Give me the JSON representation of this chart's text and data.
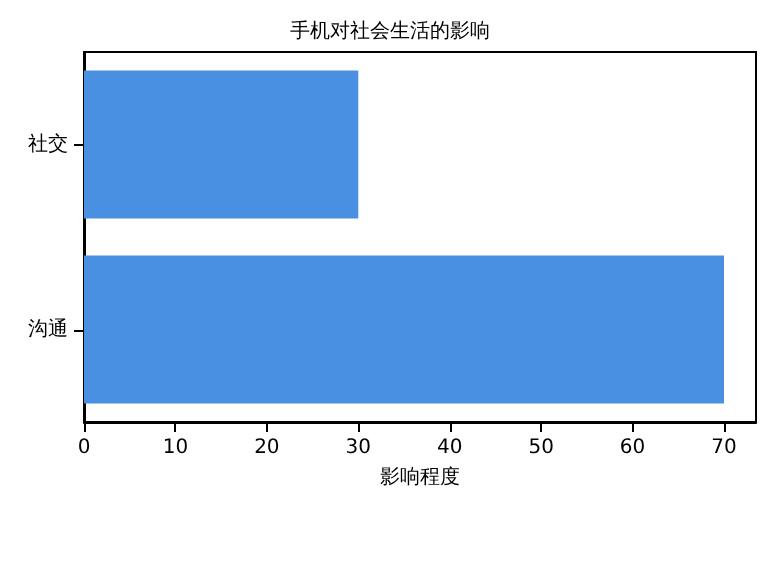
{
  "chart_data": {
    "type": "bar",
    "orientation": "horizontal",
    "title": "手机对社会生活的影响",
    "xlabel": "影响程度",
    "categories": [
      "社交",
      "沟通"
    ],
    "values": [
      30,
      70
    ],
    "color": "#4a90e2",
    "xlim": [
      0,
      73.5
    ],
    "xticks": [
      0,
      10,
      20,
      30,
      40,
      50,
      60,
      70
    ],
    "grid": false
  }
}
